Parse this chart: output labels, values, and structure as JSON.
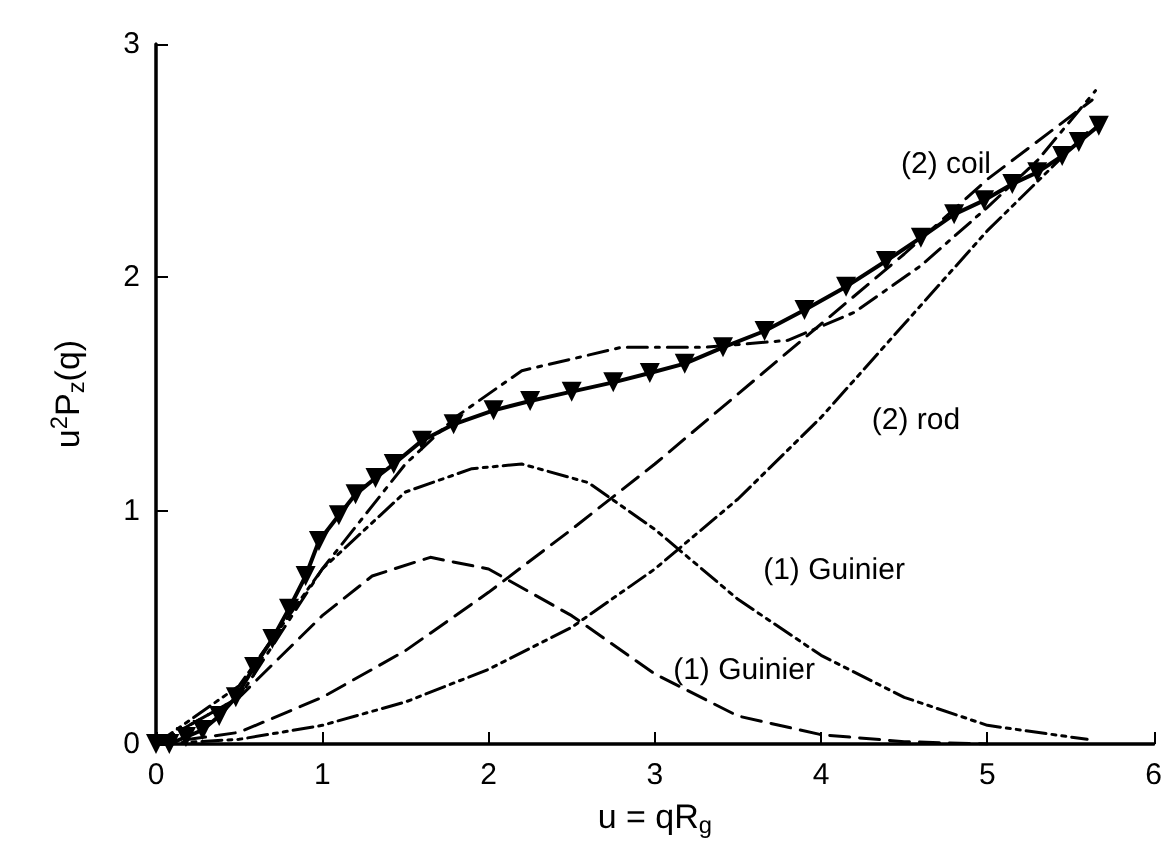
{
  "chart_data": {
    "type": "line",
    "xlabel": "u = qR$_{g}$",
    "ylabel": "u$^{2}$P$_{z}$(q)",
    "xlim": [
      0,
      6
    ],
    "xticks": [
      0,
      1,
      2,
      3,
      4,
      5,
      6
    ],
    "ylim": [
      0,
      3
    ],
    "yticks": [
      0,
      1,
      2,
      3
    ],
    "grid": false,
    "series": [
      {
        "color": "#000000",
        "marker": "triangle",
        "line_style": "solid",
        "x": [
          0,
          0.08,
          0.18,
          0.28,
          0.38,
          0.48,
          0.59,
          0.7,
          0.8,
          0.9,
          0.98,
          1.1,
          1.2,
          1.32,
          1.43,
          1.6,
          1.79,
          2.03,
          2.25,
          2.5,
          2.75,
          2.97,
          3.18,
          3.41,
          3.66,
          3.9,
          4.15,
          4.39,
          4.6,
          4.8,
          4.98,
          5.15,
          5.3,
          5.45,
          5.55,
          5.67
        ],
        "values": [
          0,
          0,
          0.03,
          0.06,
          0.12,
          0.2,
          0.33,
          0.45,
          0.58,
          0.72,
          0.87,
          0.98,
          1.07,
          1.14,
          1.2,
          1.3,
          1.37,
          1.43,
          1.47,
          1.51,
          1.55,
          1.59,
          1.63,
          1.7,
          1.77,
          1.86,
          1.96,
          2.07,
          2.17,
          2.27,
          2.33,
          2.4,
          2.45,
          2.52,
          2.58,
          2.65
        ]
      },
      {
        "color": "#000000",
        "marker": "none",
        "line_style": "dashed",
        "x": [
          0,
          0.5,
          1,
          1.3,
          1.65,
          2,
          2.5,
          3,
          3.5,
          4,
          4.5,
          5
        ],
        "values": [
          0,
          0.2,
          0.55,
          0.72,
          0.8,
          0.75,
          0.55,
          0.3,
          0.12,
          0.04,
          0.01,
          0
        ]
      },
      {
        "color": "#000000",
        "marker": "none",
        "line_style": "dashdotdot",
        "x": [
          0,
          0.5,
          1,
          1.5,
          1.9,
          2.2,
          2.6,
          3,
          3.5,
          4,
          4.5,
          5,
          5.6
        ],
        "values": [
          0,
          0.25,
          0.75,
          1.08,
          1.18,
          1.2,
          1.12,
          0.92,
          0.62,
          0.38,
          0.2,
          0.08,
          0.02
        ]
      },
      {
        "color": "#000000",
        "marker": "none",
        "line_style": "dashed",
        "x": [
          0,
          0.5,
          1,
          1.5,
          2,
          2.5,
          3,
          3.5,
          4,
          4.5,
          5,
          5.63
        ],
        "values": [
          0,
          0.05,
          0.2,
          0.4,
          0.65,
          0.92,
          1.2,
          1.5,
          1.8,
          2.1,
          2.42,
          2.76
        ]
      },
      {
        "color": "#000000",
        "marker": "none",
        "line_style": "dashdotdot",
        "x": [
          0,
          0.5,
          1,
          1.5,
          2,
          2.5,
          3,
          3.5,
          4,
          4.5,
          5,
          5.6
        ],
        "values": [
          0,
          0.02,
          0.08,
          0.18,
          0.32,
          0.5,
          0.75,
          1.05,
          1.4,
          1.8,
          2.2,
          2.62
        ]
      },
      {
        "color": "#000000",
        "marker": "none",
        "line_style": "dashdot",
        "x": [
          0,
          0.5,
          1,
          1.5,
          1.8,
          2.2,
          2.8,
          3.3,
          3.8,
          4.2,
          4.6,
          5,
          5.3,
          5.65
        ],
        "values": [
          0,
          0.2,
          0.75,
          1.2,
          1.4,
          1.6,
          1.7,
          1.7,
          1.73,
          1.85,
          2.05,
          2.3,
          2.5,
          2.8
        ]
      }
    ],
    "annotations": [
      "(2) coil",
      "(2) rod",
      "(1) Guinier",
      "(1) Guinier"
    ]
  }
}
